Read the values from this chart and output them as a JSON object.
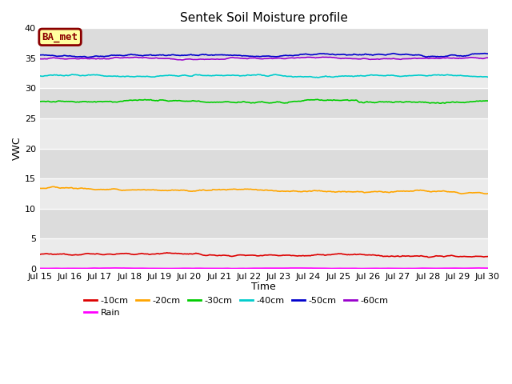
{
  "title": "Sentek Soil Moisture profile",
  "xlabel": "Time",
  "ylabel": "VWC",
  "xlim_days": [
    15,
    30
  ],
  "ylim": [
    0,
    40
  ],
  "yticks": [
    0,
    5,
    10,
    15,
    20,
    25,
    30,
    35,
    40
  ],
  "xtick_labels": [
    "Jul 15",
    "Jul 16",
    "Jul 17",
    "Jul 18",
    "Jul 19",
    "Jul 20",
    "Jul 21",
    "Jul 22",
    "Jul 23",
    "Jul 24",
    "Jul 25",
    "Jul 26",
    "Jul 27",
    "Jul 28",
    "Jul 29",
    "Jul 30"
  ],
  "bg_light": "#ebebeb",
  "bg_dark": "#dcdcdc",
  "legend_label": "BA_met",
  "legend_box_facecolor": "#ffffa0",
  "legend_box_edgecolor": "#8B0000",
  "series": {
    "-10cm": {
      "color": "#dd0000",
      "base": 2.5,
      "noise_scale": 0.18,
      "trend": -0.45
    },
    "-20cm": {
      "color": "#ffa500",
      "base": 13.3,
      "noise_scale": 0.2,
      "trend": -0.65
    },
    "-30cm": {
      "color": "#00cc00",
      "base": 27.9,
      "noise_scale": 0.22,
      "trend": -0.15
    },
    "-40cm": {
      "color": "#00cccc",
      "base": 32.1,
      "noise_scale": 0.18,
      "trend": -0.05
    },
    "-50cm": {
      "color": "#0000cc",
      "base": 35.45,
      "noise_scale": 0.2,
      "trend": 0.15
    },
    "-60cm": {
      "color": "#9900cc",
      "base": 34.95,
      "noise_scale": 0.15,
      "trend": 0.05
    },
    "Rain": {
      "color": "#ff00ff",
      "base": 0.05,
      "noise_scale": 0.03,
      "trend": 0.0
    }
  },
  "n_points": 480,
  "line_width": 1.2,
  "title_fontsize": 11,
  "tick_fontsize": 8,
  "axis_label_fontsize": 9
}
